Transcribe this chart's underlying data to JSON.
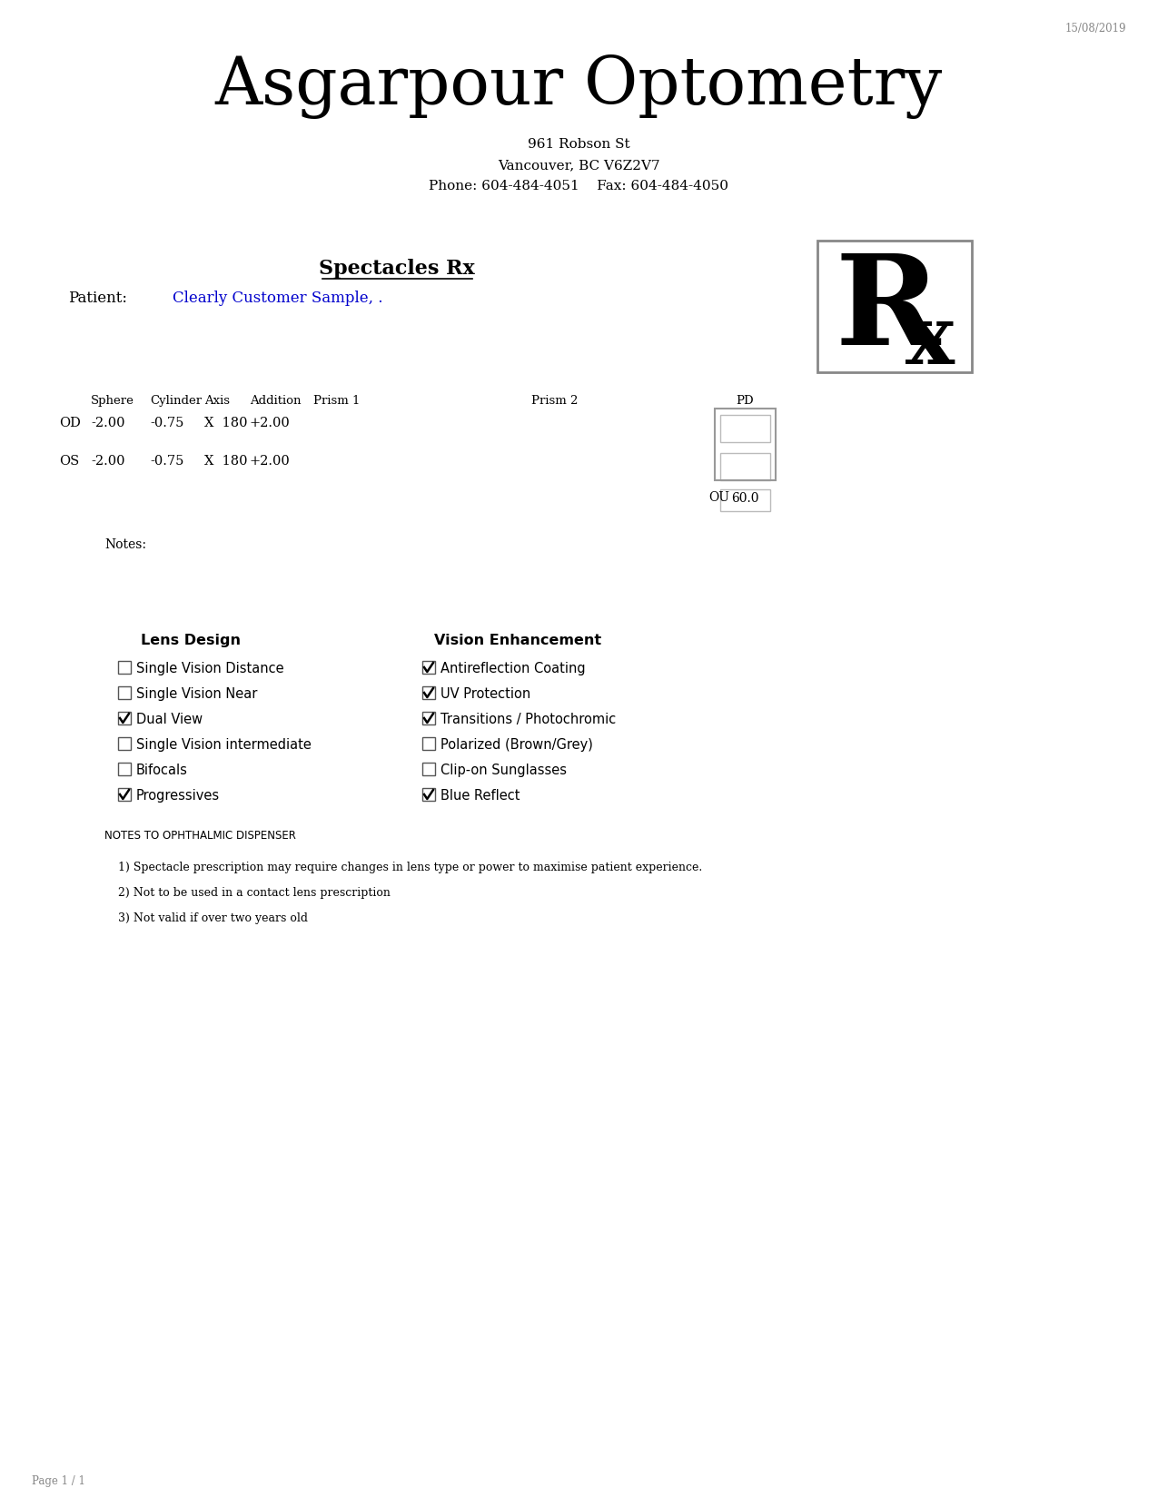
{
  "date": "15/08/2019",
  "clinic_name": "Asgarpour Optometry",
  "address1": "961 Robson St",
  "address2": "Vancouver, BC V6Z2V7",
  "phone_fax": "Phone: 604-484-4051    Fax: 604-484-4050",
  "rx_title": "Spectacles Rx",
  "patient_label": "Patient:",
  "patient_name": "Clearly Customer Sample, .",
  "patient_name_color": "#0000cc",
  "od_label": "OD",
  "od_values": [
    "-2.00",
    "-0.75",
    "X  180",
    "+2.00"
  ],
  "os_label": "OS",
  "os_values": [
    "-2.00",
    "-0.75",
    "X  180",
    "+2.00"
  ],
  "ou_label": "OU",
  "ou_value": "60.0",
  "notes_label": "Notes:",
  "lens_design_header": "Lens Design",
  "lens_design_items": [
    {
      "label": "Single Vision Distance",
      "checked": false
    },
    {
      "label": "Single Vision Near",
      "checked": false
    },
    {
      "label": "Dual View",
      "checked": true
    },
    {
      "label": "Single Vision intermediate",
      "checked": false
    },
    {
      "label": "Bifocals",
      "checked": false
    },
    {
      "label": "Progressives",
      "checked": true
    }
  ],
  "vision_enhancement_header": "Vision Enhancement",
  "vision_enhancement_items": [
    {
      "label": "Antireflection Coating",
      "checked": true
    },
    {
      "label": "UV Protection",
      "checked": true
    },
    {
      "label": "Transitions / Photochromic",
      "checked": true
    },
    {
      "label": "Polarized (Brown/Grey)",
      "checked": false
    },
    {
      "label": "Clip-on Sunglasses",
      "checked": false
    },
    {
      "label": "Blue Reflect",
      "checked": true
    }
  ],
  "notes_to_dispenser_header": "NOTES TO OPHTHALMIC DISPENSER",
  "dispenser_notes": [
    "1) Spectacle prescription may require changes in lens type or power to maximise patient experience.",
    "2) Not to be used in a contact lens prescription",
    "3) Not valid if over two years old"
  ],
  "page_label": "Page 1 / 1",
  "bg_color": "#ffffff",
  "text_color": "#000000",
  "gray_color": "#888888",
  "border_color": "#aaaaaa"
}
